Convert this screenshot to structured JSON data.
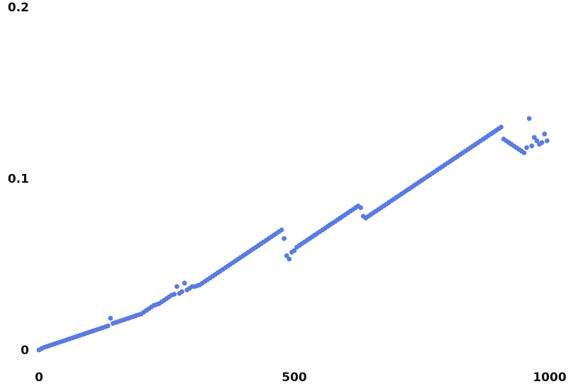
{
  "chart_data": {
    "type": "scatter",
    "title": "",
    "xlabel": "",
    "ylabel": "",
    "xlim": [
      0,
      1000
    ],
    "ylim": [
      0,
      0.2
    ],
    "grid": false,
    "legend": "none",
    "marker_color": "#5b7be0",
    "x_ticks": [
      {
        "value": 0,
        "label": "0"
      },
      {
        "value": 500,
        "label": "500"
      },
      {
        "value": 1000,
        "label": "1000"
      }
    ],
    "y_ticks": [
      {
        "value": 0,
        "label": "0"
      },
      {
        "value": 0.1,
        "label": "0.1"
      },
      {
        "value": 0.2,
        "label": "0.2"
      }
    ],
    "series": [
      {
        "points": [
          [
            0,
            0.0
          ],
          [
            5,
            0.0008
          ],
          [
            10,
            0.0015
          ],
          [
            15,
            0.002
          ],
          [
            20,
            0.0025
          ],
          [
            25,
            0.003
          ],
          [
            30,
            0.0035
          ],
          [
            35,
            0.004
          ],
          [
            40,
            0.0045
          ],
          [
            45,
            0.005
          ],
          [
            50,
            0.0055
          ],
          [
            55,
            0.006
          ],
          [
            60,
            0.0065
          ],
          [
            65,
            0.007
          ],
          [
            70,
            0.0075
          ],
          [
            75,
            0.008
          ],
          [
            80,
            0.0085
          ],
          [
            85,
            0.009
          ],
          [
            90,
            0.0095
          ],
          [
            95,
            0.01
          ],
          [
            100,
            0.0105
          ],
          [
            105,
            0.011
          ],
          [
            110,
            0.0115
          ],
          [
            115,
            0.012
          ],
          [
            120,
            0.0125
          ],
          [
            125,
            0.013
          ],
          [
            130,
            0.0135
          ],
          [
            135,
            0.014
          ],
          [
            140,
            0.0185
          ],
          [
            145,
            0.0155
          ],
          [
            150,
            0.016
          ],
          [
            155,
            0.0165
          ],
          [
            160,
            0.017
          ],
          [
            165,
            0.0175
          ],
          [
            170,
            0.018
          ],
          [
            175,
            0.0185
          ],
          [
            180,
            0.019
          ],
          [
            185,
            0.0195
          ],
          [
            190,
            0.02
          ],
          [
            195,
            0.0205
          ],
          [
            200,
            0.021
          ],
          [
            205,
            0.022
          ],
          [
            210,
            0.023
          ],
          [
            215,
            0.024
          ],
          [
            220,
            0.025
          ],
          [
            225,
            0.026
          ],
          [
            230,
            0.0265
          ],
          [
            235,
            0.027
          ],
          [
            240,
            0.028
          ],
          [
            245,
            0.029
          ],
          [
            250,
            0.03
          ],
          [
            255,
            0.031
          ],
          [
            260,
            0.032
          ],
          [
            265,
            0.0325
          ],
          [
            270,
            0.037
          ],
          [
            275,
            0.033
          ],
          [
            280,
            0.034
          ],
          [
            285,
            0.039
          ],
          [
            290,
            0.035
          ],
          [
            295,
            0.036
          ],
          [
            300,
            0.037
          ],
          [
            305,
            0.037
          ],
          [
            310,
            0.0375
          ],
          [
            315,
            0.038
          ],
          [
            320,
            0.039
          ],
          [
            325,
            0.04
          ],
          [
            330,
            0.041
          ],
          [
            335,
            0.042
          ],
          [
            340,
            0.043
          ],
          [
            345,
            0.044
          ],
          [
            350,
            0.045
          ],
          [
            355,
            0.046
          ],
          [
            360,
            0.047
          ],
          [
            365,
            0.048
          ],
          [
            370,
            0.049
          ],
          [
            375,
            0.05
          ],
          [
            380,
            0.051
          ],
          [
            385,
            0.052
          ],
          [
            390,
            0.053
          ],
          [
            395,
            0.054
          ],
          [
            400,
            0.055
          ],
          [
            405,
            0.056
          ],
          [
            410,
            0.057
          ],
          [
            415,
            0.058
          ],
          [
            420,
            0.059
          ],
          [
            425,
            0.06
          ],
          [
            430,
            0.061
          ],
          [
            435,
            0.062
          ],
          [
            440,
            0.063
          ],
          [
            445,
            0.064
          ],
          [
            450,
            0.065
          ],
          [
            455,
            0.066
          ],
          [
            460,
            0.067
          ],
          [
            465,
            0.068
          ],
          [
            470,
            0.069
          ],
          [
            475,
            0.07
          ],
          [
            480,
            0.065
          ],
          [
            485,
            0.055
          ],
          [
            490,
            0.053
          ],
          [
            495,
            0.057
          ],
          [
            500,
            0.058
          ],
          [
            505,
            0.06
          ],
          [
            510,
            0.061
          ],
          [
            515,
            0.062
          ],
          [
            520,
            0.063
          ],
          [
            525,
            0.064
          ],
          [
            530,
            0.065
          ],
          [
            535,
            0.066
          ],
          [
            540,
            0.067
          ],
          [
            545,
            0.068
          ],
          [
            550,
            0.069
          ],
          [
            555,
            0.07
          ],
          [
            560,
            0.071
          ],
          [
            565,
            0.072
          ],
          [
            570,
            0.073
          ],
          [
            575,
            0.074
          ],
          [
            580,
            0.075
          ],
          [
            585,
            0.076
          ],
          [
            590,
            0.077
          ],
          [
            595,
            0.078
          ],
          [
            600,
            0.079
          ],
          [
            605,
            0.08
          ],
          [
            610,
            0.081
          ],
          [
            615,
            0.082
          ],
          [
            620,
            0.083
          ],
          [
            625,
            0.084
          ],
          [
            630,
            0.083
          ],
          [
            635,
            0.078
          ],
          [
            640,
            0.077
          ],
          [
            645,
            0.078
          ],
          [
            650,
            0.079
          ],
          [
            655,
            0.08
          ],
          [
            660,
            0.081
          ],
          [
            665,
            0.082
          ],
          [
            670,
            0.083
          ],
          [
            675,
            0.084
          ],
          [
            680,
            0.085
          ],
          [
            685,
            0.086
          ],
          [
            690,
            0.087
          ],
          [
            695,
            0.088
          ],
          [
            700,
            0.089
          ],
          [
            705,
            0.09
          ],
          [
            710,
            0.091
          ],
          [
            715,
            0.092
          ],
          [
            720,
            0.093
          ],
          [
            725,
            0.094
          ],
          [
            730,
            0.095
          ],
          [
            735,
            0.096
          ],
          [
            740,
            0.097
          ],
          [
            745,
            0.098
          ],
          [
            750,
            0.099
          ],
          [
            755,
            0.1
          ],
          [
            760,
            0.101
          ],
          [
            765,
            0.102
          ],
          [
            770,
            0.103
          ],
          [
            775,
            0.104
          ],
          [
            780,
            0.105
          ],
          [
            785,
            0.106
          ],
          [
            790,
            0.107
          ],
          [
            795,
            0.108
          ],
          [
            800,
            0.109
          ],
          [
            805,
            0.11
          ],
          [
            810,
            0.111
          ],
          [
            815,
            0.112
          ],
          [
            820,
            0.113
          ],
          [
            825,
            0.114
          ],
          [
            830,
            0.115
          ],
          [
            835,
            0.116
          ],
          [
            840,
            0.117
          ],
          [
            845,
            0.118
          ],
          [
            850,
            0.119
          ],
          [
            855,
            0.12
          ],
          [
            860,
            0.121
          ],
          [
            865,
            0.122
          ],
          [
            870,
            0.123
          ],
          [
            875,
            0.124
          ],
          [
            880,
            0.125
          ],
          [
            885,
            0.126
          ],
          [
            890,
            0.127
          ],
          [
            895,
            0.128
          ],
          [
            900,
            0.129
          ],
          [
            905,
            0.13
          ],
          [
            910,
            0.123
          ],
          [
            915,
            0.122
          ],
          [
            920,
            0.121
          ],
          [
            925,
            0.12
          ],
          [
            930,
            0.119
          ],
          [
            935,
            0.118
          ],
          [
            940,
            0.117
          ],
          [
            945,
            0.116
          ],
          [
            950,
            0.115
          ],
          [
            955,
            0.118
          ],
          [
            960,
            0.135
          ],
          [
            965,
            0.119
          ],
          [
            970,
            0.124
          ],
          [
            975,
            0.122
          ],
          [
            980,
            0.12
          ],
          [
            985,
            0.121
          ],
          [
            990,
            0.126
          ],
          [
            995,
            0.122
          ]
        ]
      }
    ]
  }
}
